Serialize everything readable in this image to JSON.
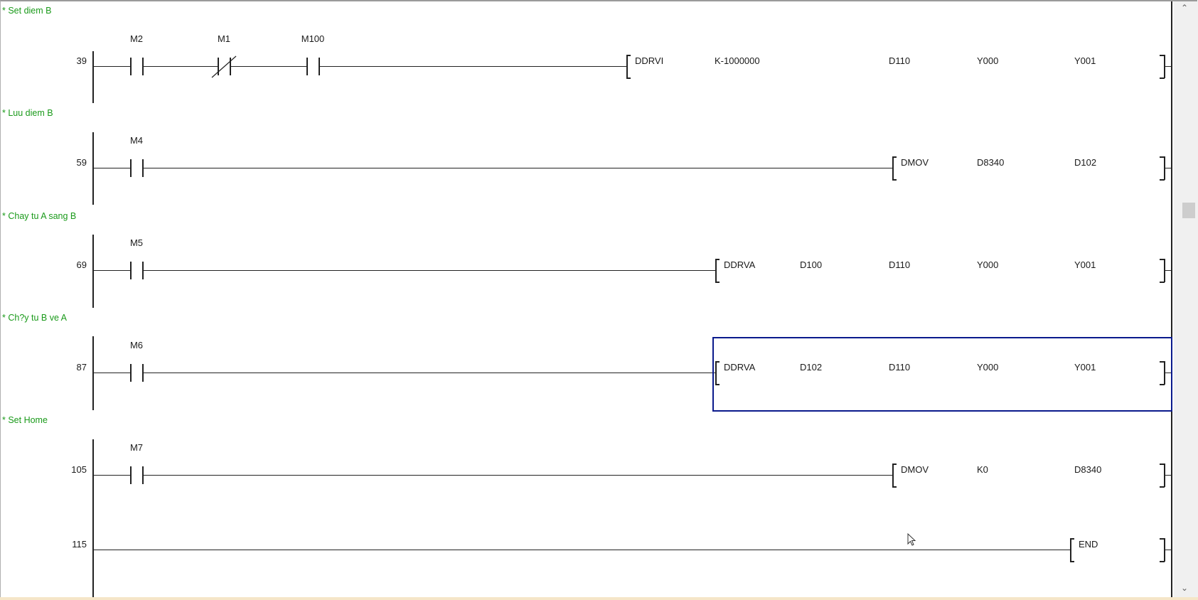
{
  "rungs": [
    {
      "comment": "* Set diem B",
      "step": "39",
      "contacts": [
        {
          "label": "M2",
          "type": "no"
        },
        {
          "label": "M1",
          "type": "nc"
        },
        {
          "label": "M100",
          "type": "no"
        }
      ],
      "instruction": "DDRVI",
      "operands": [
        "K-1000000",
        "D110",
        "Y000",
        "Y001"
      ]
    },
    {
      "comment": "* Luu diem B",
      "step": "59",
      "contacts": [
        {
          "label": "M4",
          "type": "no"
        }
      ],
      "instruction": "DMOV",
      "operands": [
        "D8340",
        "D102"
      ]
    },
    {
      "comment": "* Chay tu A sang B",
      "step": "69",
      "contacts": [
        {
          "label": "M5",
          "type": "no"
        }
      ],
      "instruction": "DDRVA",
      "operands": [
        "D100",
        "D110",
        "Y000",
        "Y001"
      ]
    },
    {
      "comment": "* Ch?y tu B ve A",
      "step": "87",
      "contacts": [
        {
          "label": "M6",
          "type": "no"
        }
      ],
      "instruction": "DDRVA",
      "operands": [
        "D102",
        "D110",
        "Y000",
        "Y001"
      ],
      "selected": true
    },
    {
      "comment": "* Set Home",
      "step": "105",
      "contacts": [
        {
          "label": "M7",
          "type": "no"
        }
      ],
      "instruction": "DMOV",
      "operands": [
        "K0",
        "D8340"
      ]
    },
    {
      "comment": "",
      "step": "115",
      "contacts": [],
      "instruction": "END",
      "operands": []
    }
  ],
  "colors": {
    "comment": "#1a9a1a",
    "selection": "#0a1a8c"
  },
  "icons": {
    "cursor": "mouse-pointer-icon",
    "scroll_up": "chevron-up-icon",
    "scroll_down": "chevron-down-icon"
  }
}
